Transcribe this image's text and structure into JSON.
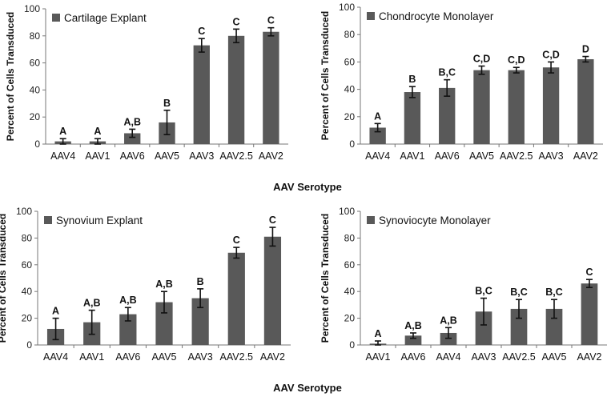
{
  "chart_data": [
    {
      "type": "bar",
      "title": "Cartilage Explant",
      "legend_label": "Cartilage Explant",
      "ylabel": "Percent of Cells Transduced",
      "ylim": [
        0,
        100
      ],
      "yticks": [
        0,
        20,
        40,
        60,
        80,
        100
      ],
      "categories": [
        "AAV4",
        "AAV1",
        "AAV6",
        "AAV5",
        "AAV3",
        "AAV2.5",
        "AAV2"
      ],
      "values": [
        2,
        2,
        8,
        16,
        73,
        80,
        83
      ],
      "errors": [
        2,
        2,
        3,
        9,
        5,
        5,
        3
      ],
      "significance": [
        "A",
        "A",
        "A,B",
        "B",
        "C",
        "C",
        "C"
      ],
      "bar_color": "#595959"
    },
    {
      "type": "bar",
      "title": "Chondrocyte Monolayer",
      "legend_label": "Chondrocyte Monolayer",
      "ylabel": "Percent of Cells Transduced",
      "ylim": [
        0,
        100
      ],
      "yticks": [
        0,
        20,
        40,
        60,
        80,
        100
      ],
      "categories": [
        "AAV4",
        "AAV1",
        "AAV6",
        "AAV5",
        "AAV2.5",
        "AAV3",
        "AAV2"
      ],
      "values": [
        12,
        38,
        41,
        54,
        54,
        56,
        62
      ],
      "errors": [
        3,
        4,
        6,
        3,
        2,
        4,
        2
      ],
      "significance": [
        "A",
        "B",
        "B,C",
        "C,D",
        "C,D",
        "C,D",
        "D"
      ],
      "bar_color": "#595959"
    },
    {
      "type": "bar",
      "title": "Synovium Explant",
      "legend_label": "Synovium Explant",
      "ylabel": "Percent of Cells Transduced",
      "ylim": [
        0,
        100
      ],
      "yticks": [
        0,
        20,
        40,
        60,
        80,
        100
      ],
      "categories": [
        "AAV4",
        "AAV1",
        "AAV6",
        "AAV5",
        "AAV3",
        "AAV2.5",
        "AAV2"
      ],
      "values": [
        12,
        17,
        23,
        32,
        35,
        69,
        81
      ],
      "errors": [
        8,
        9,
        5,
        8,
        7,
        4,
        7
      ],
      "significance": [
        "A",
        "A,B",
        "A,B",
        "A,B",
        "B",
        "C",
        "C"
      ],
      "bar_color": "#595959"
    },
    {
      "type": "bar",
      "title": "Synoviocyte Monolayer",
      "legend_label": "Synoviocyte Monolayer",
      "ylabel": "Percent of Cells Transduced",
      "ylim": [
        0,
        100
      ],
      "yticks": [
        0,
        20,
        40,
        60,
        80,
        100
      ],
      "categories": [
        "AAV1",
        "AAV6",
        "AAV4",
        "AAV3",
        "AAV2.5",
        "AAV5",
        "AAV2"
      ],
      "values": [
        1,
        7,
        9,
        25,
        27,
        27,
        46
      ],
      "errors": [
        2,
        2,
        4,
        10,
        7,
        7,
        3
      ],
      "significance": [
        "A",
        "A,B",
        "A,B",
        "B,C",
        "B,C",
        "B,C",
        "C"
      ],
      "bar_color": "#595959"
    }
  ],
  "xlabels": {
    "top": "AAV Serotype",
    "bottom": "AAV Serotype"
  }
}
